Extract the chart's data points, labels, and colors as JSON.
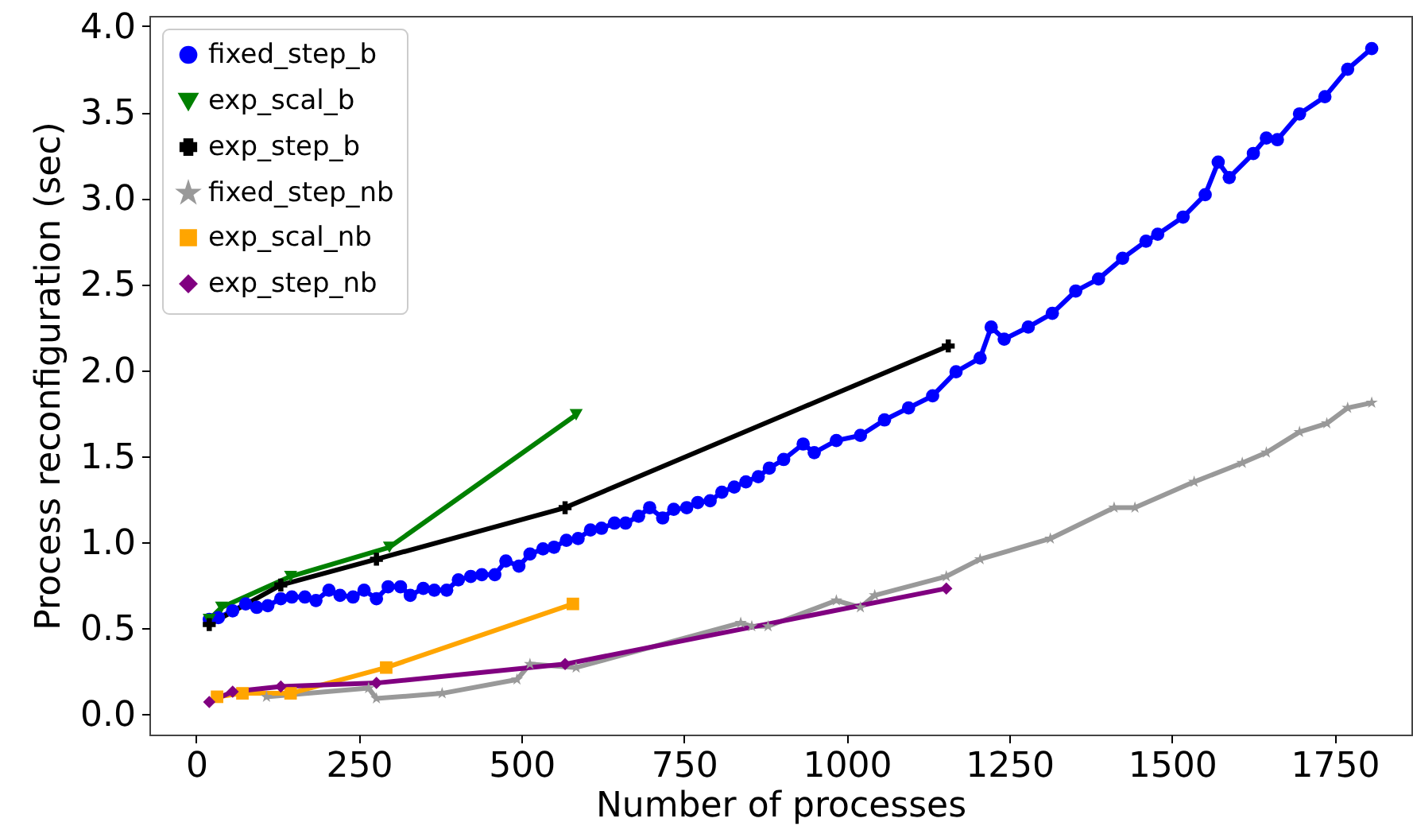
{
  "chart_data": {
    "type": "line",
    "xlabel": "Number of processes",
    "ylabel": "Process reconfiguration (sec)",
    "xlim": [
      -72,
      1868
    ],
    "xticks": [
      0,
      250,
      500,
      750,
      1000,
      1250,
      1500,
      1750
    ],
    "ylim": [
      -0.12,
      4.06
    ],
    "yticks": [
      {
        "value": 0,
        "label": "0.0"
      },
      {
        "value": 0.5,
        "label": "0.5"
      },
      {
        "value": 1,
        "label": "1.0"
      },
      {
        "value": 1.5,
        "label": "1.5"
      },
      {
        "value": 2,
        "label": "2.0"
      },
      {
        "value": 2.5,
        "label": "2.5"
      },
      {
        "value": 3,
        "label": "3.0"
      },
      {
        "value": 3.5,
        "label": "3.5"
      },
      {
        "value": 4,
        "label": "4.0"
      }
    ],
    "legend": "top left",
    "grid": false,
    "series": [
      {
        "name": "fixed_step_b",
        "color": "#0000ff",
        "marker": "circle",
        "x": [
          20,
          34,
          56,
          76,
          93,
          110,
          130,
          147,
          167,
          184,
          204,
          221,
          241,
          258,
          277,
          295,
          314,
          329,
          349,
          366,
          385,
          403,
          422,
          439,
          459,
          476,
          496,
          513,
          533,
          550,
          569,
          587,
          606,
          623,
          643,
          660,
          680,
          697,
          717,
          734,
          754,
          771,
          790,
          808,
          827,
          845,
          864,
          881,
          903,
          933,
          950,
          984,
          1021,
          1058,
          1095,
          1132,
          1168,
          1205,
          1222,
          1242,
          1279,
          1316,
          1352,
          1387,
          1424,
          1460,
          1478,
          1517,
          1551,
          1571,
          1588,
          1625,
          1645,
          1662,
          1696,
          1735,
          1770,
          1807
        ],
        "values": [
          0.55,
          0.56,
          0.6,
          0.64,
          0.62,
          0.63,
          0.67,
          0.68,
          0.68,
          0.66,
          0.72,
          0.69,
          0.68,
          0.72,
          0.67,
          0.74,
          0.74,
          0.69,
          0.73,
          0.72,
          0.72,
          0.78,
          0.8,
          0.81,
          0.81,
          0.89,
          0.86,
          0.93,
          0.96,
          0.97,
          1.01,
          1.02,
          1.07,
          1.08,
          1.11,
          1.11,
          1.15,
          1.2,
          1.14,
          1.19,
          1.2,
          1.23,
          1.24,
          1.29,
          1.32,
          1.35,
          1.38,
          1.43,
          1.48,
          1.57,
          1.52,
          1.59,
          1.62,
          1.71,
          1.78,
          1.85,
          1.99,
          2.07,
          2.25,
          2.18,
          2.25,
          2.33,
          2.46,
          2.53,
          2.65,
          2.75,
          2.79,
          2.89,
          3.02,
          3.21,
          3.12,
          3.26,
          3.35,
          3.34,
          3.49,
          3.59,
          3.75,
          3.87
        ]
      },
      {
        "name": "exp_scal_b",
        "color": "#008000",
        "marker": "triangle",
        "x": [
          20,
          39,
          145,
          297,
          584
        ],
        "values": [
          0.55,
          0.62,
          0.8,
          0.97,
          1.74
        ]
      },
      {
        "name": "exp_step_b",
        "color": "#000000",
        "marker": "cross",
        "x": [
          20,
          130,
          277,
          567,
          1156
        ],
        "values": [
          0.52,
          0.75,
          0.9,
          1.2,
          2.14
        ]
      },
      {
        "name": "fixed_step_nb",
        "color": "#999999",
        "marker": "star",
        "x": [
          108,
          265,
          277,
          378,
          493,
          513,
          584,
          837,
          854,
          879,
          984,
          1021,
          1043,
          1153,
          1205,
          1313,
          1411,
          1443,
          1534,
          1608,
          1645,
          1696,
          1738,
          1770,
          1807
        ],
        "values": [
          0.1,
          0.15,
          0.09,
          0.12,
          0.2,
          0.29,
          0.27,
          0.53,
          0.51,
          0.51,
          0.66,
          0.62,
          0.69,
          0.8,
          0.9,
          1.02,
          1.2,
          1.2,
          1.35,
          1.46,
          1.52,
          1.64,
          1.69,
          1.78,
          1.81
        ]
      },
      {
        "name": "exp_scal_nb",
        "color": "#ffa500",
        "marker": "square",
        "x": [
          32,
          71,
          145,
          292,
          579
        ],
        "values": [
          0.1,
          0.12,
          0.12,
          0.27,
          0.64
        ]
      },
      {
        "name": "exp_step_nb",
        "color": "#800080",
        "marker": "diamond",
        "x": [
          20,
          56,
          130,
          277,
          567,
          1153
        ],
        "values": [
          0.07,
          0.13,
          0.16,
          0.18,
          0.29,
          0.73
        ]
      }
    ]
  }
}
